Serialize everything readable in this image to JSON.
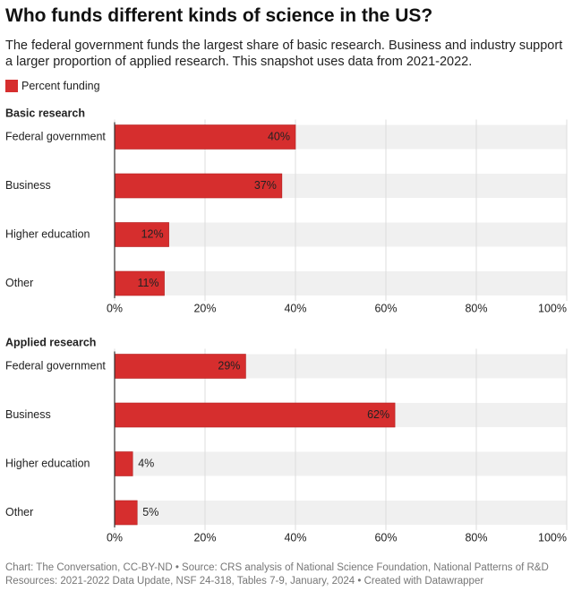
{
  "title": "Who funds different kinds of science in the US?",
  "subtitle": "The federal government funds the largest share of basic research. Business and industry support a larger proportion of applied research. This snapshot uses data from 2021-2022.",
  "legend": {
    "name": "Percent funding",
    "color": "#d62e2e"
  },
  "footer": "Chart: The Conversation, CC-BY-ND • Source: CRS analysis of National Science Foundation, National Patterns of R&D Resources: 2021-2022 Data Update, NSF 24-318, Tables 7-9, January, 2024 • Created with Datawrapper",
  "chart_data": [
    {
      "type": "bar",
      "orientation": "horizontal",
      "title": "Basic research",
      "categories": [
        "Federal government",
        "Business",
        "Higher education",
        "Other"
      ],
      "values": [
        40,
        37,
        12,
        11
      ],
      "value_labels": [
        "40%",
        "37%",
        "12%",
        "11%"
      ],
      "xlim": [
        0,
        100
      ],
      "xticks": [
        {
          "value": 0,
          "label": "0%"
        },
        {
          "value": 20,
          "label": "20%"
        },
        {
          "value": 40,
          "label": "40%"
        },
        {
          "value": 60,
          "label": "60%"
        },
        {
          "value": 80,
          "label": "80%"
        },
        {
          "value": 100,
          "label": "100%"
        }
      ],
      "grid": true
    },
    {
      "type": "bar",
      "orientation": "horizontal",
      "title": "Applied research",
      "categories": [
        "Federal government",
        "Business",
        "Higher education",
        "Other"
      ],
      "values": [
        29,
        62,
        4,
        5
      ],
      "value_labels": [
        "29%",
        "62%",
        "4%",
        "5%"
      ],
      "xlim": [
        0,
        100
      ],
      "xticks": [
        {
          "value": 0,
          "label": "0%"
        },
        {
          "value": 20,
          "label": "20%"
        },
        {
          "value": 40,
          "label": "40%"
        },
        {
          "value": 60,
          "label": "60%"
        },
        {
          "value": 80,
          "label": "80%"
        },
        {
          "value": 100,
          "label": "100%"
        }
      ],
      "grid": true
    }
  ]
}
